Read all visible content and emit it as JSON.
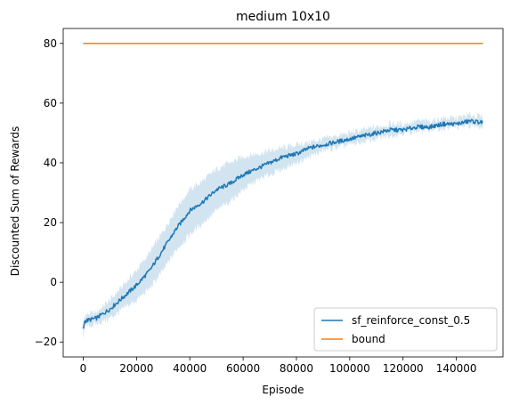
{
  "chart_data": {
    "type": "line",
    "title": "medium 10x10",
    "xlabel": "Episode",
    "ylabel": "Discounted Sum of Rewards",
    "xlim": [
      -7500,
      157500
    ],
    "ylim": [
      -25,
      85
    ],
    "xticks": [
      0,
      20000,
      40000,
      60000,
      80000,
      100000,
      120000,
      140000
    ],
    "yticks": [
      -20,
      0,
      20,
      40,
      60,
      80
    ],
    "grid": false,
    "legend_position": "lower-right",
    "series": [
      {
        "name": "sf_reinforce_const_0.5",
        "color": "#1f77b4",
        "band_color": "#1f77b4",
        "x": [
          0,
          500,
          5000,
          10000,
          15000,
          20000,
          25000,
          30000,
          35000,
          40000,
          45000,
          50000,
          55000,
          60000,
          65000,
          70000,
          75000,
          80000,
          85000,
          90000,
          95000,
          100000,
          105000,
          110000,
          115000,
          120000,
          125000,
          130000,
          135000,
          140000,
          145000,
          150000
        ],
        "values": [
          -16,
          -13,
          -12,
          -9,
          -5,
          -1,
          4,
          11,
          18,
          24,
          27,
          31,
          33,
          36,
          38,
          40,
          42,
          43,
          45,
          46,
          47,
          48,
          49,
          50,
          51,
          51,
          52,
          52,
          53,
          53,
          54,
          53.5
        ],
        "lower": [
          -18,
          -15,
          -14,
          -12,
          -9,
          -6,
          -2,
          4,
          11,
          16,
          20,
          24,
          27,
          31,
          34,
          36,
          38,
          40,
          42,
          44,
          45,
          46,
          47,
          48,
          49,
          50,
          50.5,
          51,
          51.5,
          52,
          52.5,
          52
        ],
        "upper": [
          -14,
          -11,
          -10,
          -6,
          -1,
          4,
          10,
          17,
          25,
          31,
          34,
          38,
          40,
          42,
          43,
          44,
          45,
          46,
          47,
          48,
          49,
          50,
          51,
          52,
          53,
          53,
          54,
          54,
          55,
          55,
          56,
          55.5
        ]
      },
      {
        "name": "bound",
        "color": "#ff7f0e",
        "x": [
          0,
          150000
        ],
        "values": [
          80,
          80
        ]
      }
    ]
  }
}
